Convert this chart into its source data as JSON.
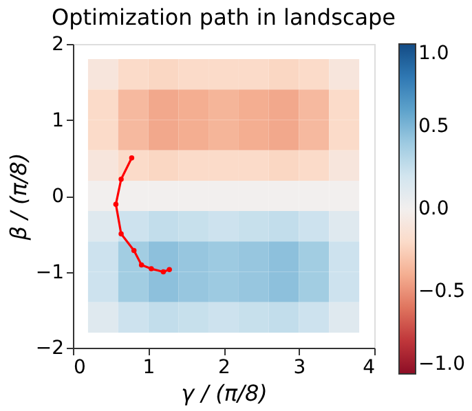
{
  "chart_data": {
    "type": "heatmap",
    "title": "Optimization path in landscape",
    "xlabel": "γ / (π/8)",
    "ylabel": "β / (π/8)",
    "x": [
      0.4,
      0.8,
      1.2,
      1.6,
      2.0,
      2.4,
      2.8,
      3.2,
      3.6
    ],
    "y": [
      1.6,
      1.2,
      0.8,
      0.4,
      0.0,
      -0.4,
      -0.8,
      -1.2,
      -1.6
    ],
    "cells": [
      [
        -0.1,
        -0.2,
        -0.22,
        -0.2,
        -0.2,
        -0.2,
        -0.22,
        -0.2,
        -0.1
      ],
      [
        -0.2,
        -0.35,
        -0.42,
        -0.4,
        -0.37,
        -0.4,
        -0.42,
        -0.35,
        -0.2
      ],
      [
        -0.2,
        -0.35,
        -0.42,
        -0.4,
        -0.37,
        -0.4,
        -0.42,
        -0.35,
        -0.2
      ],
      [
        -0.1,
        -0.2,
        -0.22,
        -0.2,
        -0.2,
        -0.2,
        -0.22,
        -0.2,
        -0.1
      ],
      [
        0,
        0,
        0,
        0,
        0,
        0,
        0,
        0,
        0
      ],
      [
        0.12,
        0.22,
        0.26,
        0.24,
        0.22,
        0.24,
        0.26,
        0.22,
        0.12
      ],
      [
        0.22,
        0.38,
        0.45,
        0.42,
        0.4,
        0.42,
        0.45,
        0.38,
        0.22
      ],
      [
        0.22,
        0.38,
        0.45,
        0.42,
        0.4,
        0.42,
        0.45,
        0.38,
        0.22
      ],
      [
        0.12,
        0.22,
        0.26,
        0.24,
        0.22,
        0.24,
        0.26,
        0.22,
        0.12
      ]
    ],
    "clim": [
      -1,
      1
    ],
    "cticks": [
      {
        "value": -1,
        "label": "−1.0"
      },
      {
        "value": -0.5,
        "label": "−0.5"
      },
      {
        "value": 0,
        "label": "0.0"
      },
      {
        "value": 0.5,
        "label": "0.5"
      },
      {
        "value": 1,
        "label": "1.0"
      }
    ],
    "xlim": [
      0,
      4
    ],
    "xticks": [
      0,
      1,
      2,
      3,
      4
    ],
    "ylim": [
      -2,
      2
    ],
    "yticks": [
      -2,
      -1,
      0,
      1,
      2
    ],
    "series": [
      {
        "type": "line",
        "color": "#ff0000",
        "marker": "circle",
        "x": [
          0.78,
          0.64,
          0.57,
          0.64,
          0.81,
          0.91,
          1.04,
          1.2,
          1.28
        ],
        "values": [
          0.5,
          0.22,
          -0.11,
          -0.5,
          -0.72,
          -0.91,
          -0.96,
          -1.0,
          -0.97
        ]
      }
    ],
    "grid": false
  }
}
